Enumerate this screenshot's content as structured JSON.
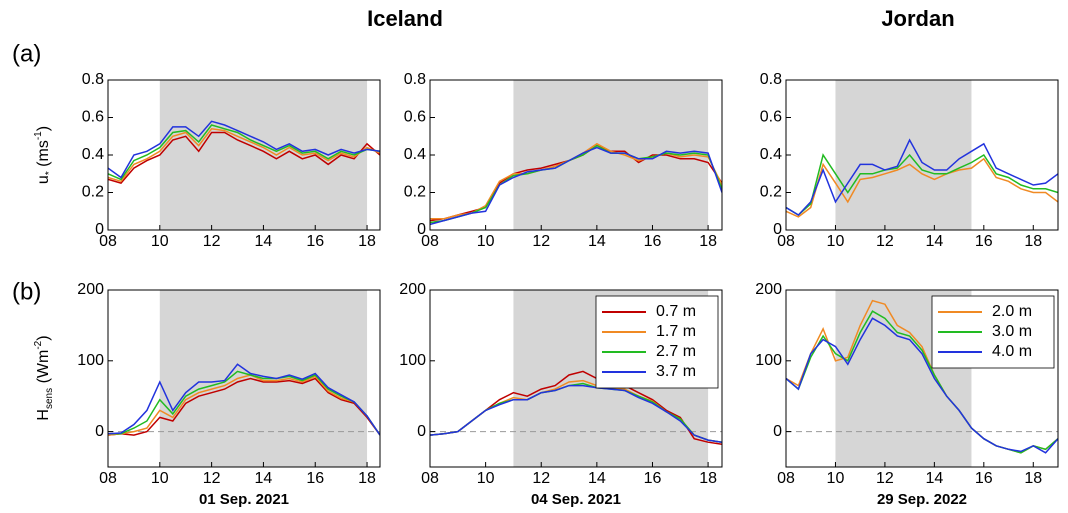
{
  "headers": [
    "Iceland",
    "Jordan"
  ],
  "row_labels": [
    "(a)",
    "(b)"
  ],
  "y_labels": [
    [
      "u",
      "*",
      " (ms",
      "-1",
      ")"
    ],
    [
      "H",
      "sens",
      " (Wm",
      "-2",
      ")"
    ]
  ],
  "chart_data": [
    {
      "type": "line",
      "x": [
        8,
        8.5,
        9,
        9.5,
        10,
        10.5,
        11,
        11.5,
        12,
        12.5,
        13,
        13.5,
        14,
        14.5,
        15,
        15.5,
        16,
        16.5,
        17,
        17.5,
        18,
        18.5
      ],
      "xlim": [
        8,
        18.5
      ],
      "xticks": [
        {
          "value": 8,
          "label": "08"
        },
        10,
        12,
        14,
        16,
        18
      ],
      "ylim": [
        0,
        0.8
      ],
      "yticks": [
        0,
        0.2,
        0.4,
        0.6,
        0.8
      ],
      "shade": [
        10,
        18
      ],
      "series": [
        {
          "color": "#c00000",
          "values": [
            0.27,
            0.25,
            0.33,
            0.37,
            0.4,
            0.48,
            0.5,
            0.42,
            0.52,
            0.52,
            0.48,
            0.45,
            0.42,
            0.38,
            0.42,
            0.38,
            0.4,
            0.35,
            0.4,
            0.38,
            0.46,
            0.4
          ]
        },
        {
          "color": "#f08a24",
          "values": [
            0.28,
            0.26,
            0.35,
            0.38,
            0.42,
            0.5,
            0.52,
            0.45,
            0.54,
            0.53,
            0.5,
            0.47,
            0.44,
            0.4,
            0.44,
            0.4,
            0.41,
            0.37,
            0.41,
            0.39,
            0.44,
            0.41
          ]
        },
        {
          "color": "#22bb22",
          "values": [
            0.3,
            0.27,
            0.37,
            0.4,
            0.44,
            0.52,
            0.53,
            0.47,
            0.56,
            0.54,
            0.52,
            0.48,
            0.45,
            0.42,
            0.45,
            0.41,
            0.42,
            0.38,
            0.42,
            0.4,
            0.43,
            0.42
          ]
        },
        {
          "color": "#2233dd",
          "values": [
            0.33,
            0.28,
            0.4,
            0.42,
            0.46,
            0.55,
            0.55,
            0.5,
            0.58,
            0.56,
            0.53,
            0.5,
            0.47,
            0.43,
            0.46,
            0.42,
            0.43,
            0.4,
            0.43,
            0.41,
            0.43,
            0.42
          ]
        }
      ]
    },
    {
      "type": "line",
      "x": [
        8,
        8.5,
        9,
        9.5,
        10,
        10.5,
        11,
        11.5,
        12,
        12.5,
        13,
        13.5,
        14,
        14.5,
        15,
        15.5,
        16,
        16.5,
        17,
        17.5,
        18,
        18.5
      ],
      "xlim": [
        8,
        18.5
      ],
      "xticks": [
        {
          "value": 8,
          "label": "08"
        },
        10,
        12,
        14,
        16,
        18
      ],
      "ylim": [
        0,
        0.8
      ],
      "yticks": [
        0,
        0.2,
        0.4,
        0.6,
        0.8
      ],
      "shade": [
        11,
        18
      ],
      "series": [
        {
          "color": "#c00000",
          "values": [
            0.05,
            0.06,
            0.08,
            0.1,
            0.12,
            0.25,
            0.3,
            0.32,
            0.33,
            0.35,
            0.37,
            0.4,
            0.45,
            0.42,
            0.42,
            0.36,
            0.4,
            0.4,
            0.38,
            0.38,
            0.36,
            0.25
          ]
        },
        {
          "color": "#f08a24",
          "values": [
            0.06,
            0.06,
            0.08,
            0.09,
            0.13,
            0.26,
            0.3,
            0.3,
            0.32,
            0.34,
            0.37,
            0.41,
            0.46,
            0.42,
            0.4,
            0.37,
            0.39,
            0.41,
            0.39,
            0.4,
            0.39,
            0.24
          ]
        },
        {
          "color": "#22bb22",
          "values": [
            0.04,
            0.05,
            0.07,
            0.09,
            0.12,
            0.24,
            0.29,
            0.3,
            0.32,
            0.33,
            0.37,
            0.4,
            0.45,
            0.41,
            0.41,
            0.38,
            0.39,
            0.41,
            0.4,
            0.41,
            0.4,
            0.22
          ]
        },
        {
          "color": "#2233dd",
          "values": [
            0.03,
            0.05,
            0.07,
            0.09,
            0.1,
            0.24,
            0.28,
            0.31,
            0.32,
            0.33,
            0.37,
            0.41,
            0.44,
            0.41,
            0.41,
            0.38,
            0.38,
            0.42,
            0.41,
            0.42,
            0.41,
            0.2
          ]
        }
      ]
    },
    {
      "type": "line",
      "x": [
        8,
        8.5,
        9,
        9.5,
        10,
        10.5,
        11,
        11.5,
        12,
        12.5,
        13,
        13.5,
        14,
        14.5,
        15,
        15.5,
        16,
        16.5,
        17,
        17.5,
        18,
        18.5,
        19
      ],
      "xlim": [
        8,
        19
      ],
      "xticks": [
        {
          "value": 8,
          "label": "08"
        },
        10,
        12,
        14,
        16,
        18
      ],
      "ylim": [
        0,
        0.8
      ],
      "yticks": [
        0,
        0.2,
        0.4,
        0.6,
        0.8
      ],
      "shade": [
        10,
        15.5
      ],
      "series": [
        {
          "color": "#f08a24",
          "values": [
            0.1,
            0.07,
            0.12,
            0.35,
            0.25,
            0.15,
            0.27,
            0.28,
            0.3,
            0.32,
            0.35,
            0.3,
            0.27,
            0.3,
            0.32,
            0.33,
            0.38,
            0.28,
            0.26,
            0.22,
            0.2,
            0.2,
            0.15
          ]
        },
        {
          "color": "#22bb22",
          "values": [
            0.12,
            0.08,
            0.14,
            0.4,
            0.3,
            0.2,
            0.3,
            0.3,
            0.32,
            0.33,
            0.4,
            0.32,
            0.3,
            0.3,
            0.33,
            0.36,
            0.4,
            0.3,
            0.28,
            0.24,
            0.22,
            0.22,
            0.2
          ]
        },
        {
          "color": "#2233dd",
          "values": [
            0.12,
            0.08,
            0.15,
            0.32,
            0.15,
            0.25,
            0.35,
            0.35,
            0.32,
            0.34,
            0.48,
            0.36,
            0.32,
            0.32,
            0.38,
            0.42,
            0.46,
            0.33,
            0.3,
            0.27,
            0.24,
            0.25,
            0.3
          ]
        }
      ]
    },
    {
      "type": "line",
      "xlabel": "01 Sep. 2021",
      "x": [
        8,
        8.5,
        9,
        9.5,
        10,
        10.5,
        11,
        11.5,
        12,
        12.5,
        13,
        13.5,
        14,
        14.5,
        15,
        15.5,
        16,
        16.5,
        17,
        17.5,
        18,
        18.5
      ],
      "xlim": [
        8,
        18.5
      ],
      "xticks": [
        {
          "value": 8,
          "label": "08"
        },
        10,
        12,
        14,
        16,
        18
      ],
      "ylim": [
        -50,
        200
      ],
      "yticks": [
        0,
        100,
        200
      ],
      "shade": [
        10,
        18
      ],
      "zero_line": true,
      "series": [
        {
          "color": "#c00000",
          "values": [
            -5,
            -3,
            -5,
            0,
            20,
            15,
            40,
            50,
            55,
            60,
            70,
            75,
            70,
            70,
            72,
            68,
            75,
            55,
            45,
            40,
            20,
            -5
          ]
        },
        {
          "color": "#f08a24",
          "values": [
            -5,
            -3,
            0,
            5,
            30,
            20,
            45,
            55,
            60,
            65,
            75,
            80,
            72,
            72,
            75,
            70,
            78,
            57,
            47,
            42,
            22,
            -5
          ]
        },
        {
          "color": "#22bb22",
          "values": [
            -3,
            -3,
            5,
            15,
            45,
            25,
            50,
            60,
            65,
            70,
            85,
            80,
            75,
            75,
            78,
            72,
            80,
            60,
            50,
            42,
            22,
            -5
          ]
        },
        {
          "color": "#2233dd",
          "values": [
            -3,
            -2,
            10,
            30,
            70,
            30,
            55,
            70,
            70,
            72,
            95,
            82,
            78,
            75,
            80,
            74,
            82,
            62,
            52,
            42,
            22,
            -5
          ]
        }
      ]
    },
    {
      "type": "line",
      "xlabel": "04 Sep. 2021",
      "x": [
        8,
        8.5,
        9,
        9.5,
        10,
        10.5,
        11,
        11.5,
        12,
        12.5,
        13,
        13.5,
        14,
        14.5,
        15,
        15.5,
        16,
        16.5,
        17,
        17.5,
        18,
        18.5
      ],
      "xlim": [
        8,
        18.5
      ],
      "xticks": [
        {
          "value": 8,
          "label": "08"
        },
        10,
        12,
        14,
        16,
        18
      ],
      "ylim": [
        -50,
        200
      ],
      "yticks": [
        0,
        100,
        200
      ],
      "shade": [
        11,
        18
      ],
      "zero_line": true,
      "legend": "upper right",
      "series": [
        {
          "name": "0.7 m",
          "color": "#c00000",
          "values": [
            -5,
            -3,
            0,
            15,
            30,
            45,
            55,
            50,
            60,
            65,
            80,
            85,
            75,
            70,
            65,
            55,
            45,
            30,
            20,
            -10,
            -15,
            -18
          ]
        },
        {
          "name": "1.7 m",
          "color": "#f08a24",
          "values": [
            -5,
            -3,
            0,
            15,
            30,
            40,
            48,
            45,
            55,
            60,
            70,
            72,
            65,
            62,
            60,
            50,
            43,
            28,
            18,
            -5,
            -12,
            -15
          ]
        },
        {
          "name": "2.7 m",
          "color": "#22bb22",
          "values": [
            -5,
            -3,
            0,
            15,
            30,
            40,
            45,
            45,
            55,
            58,
            65,
            68,
            62,
            60,
            58,
            50,
            42,
            28,
            18,
            -5,
            -12,
            -15
          ]
        },
        {
          "name": "3.7 m",
          "color": "#2233dd",
          "values": [
            -5,
            -3,
            0,
            15,
            30,
            38,
            45,
            45,
            55,
            58,
            65,
            65,
            62,
            60,
            58,
            48,
            40,
            28,
            15,
            -5,
            -12,
            -15
          ]
        }
      ]
    },
    {
      "type": "line",
      "xlabel": "29 Sep. 2022",
      "x": [
        8,
        8.5,
        9,
        9.5,
        10,
        10.5,
        11,
        11.5,
        12,
        12.5,
        13,
        13.5,
        14,
        14.5,
        15,
        15.5,
        16,
        16.5,
        17,
        17.5,
        18,
        18.5,
        19
      ],
      "xlim": [
        8,
        19
      ],
      "xticks": [
        {
          "value": 8,
          "label": "08"
        },
        10,
        12,
        14,
        16,
        18
      ],
      "ylim": [
        -50,
        200
      ],
      "yticks": [
        0,
        100,
        200
      ],
      "shade": [
        10,
        15.5
      ],
      "zero_line": true,
      "legend": "upper right",
      "series": [
        {
          "name": "2.0 m",
          "color": "#f08a24",
          "values": [
            75,
            65,
            110,
            145,
            100,
            105,
            150,
            185,
            180,
            150,
            140,
            120,
            80,
            50,
            30,
            5,
            -10,
            -20,
            -25,
            -30,
            -20,
            -25,
            -10
          ]
        },
        {
          "name": "3.0 m",
          "color": "#22bb22",
          "values": [
            75,
            60,
            105,
            135,
            110,
            100,
            140,
            170,
            160,
            140,
            135,
            115,
            80,
            50,
            30,
            5,
            -10,
            -20,
            -25,
            -30,
            -20,
            -25,
            -10
          ]
        },
        {
          "name": "4.0 m",
          "color": "#2233dd",
          "values": [
            75,
            60,
            110,
            130,
            120,
            95,
            130,
            160,
            150,
            135,
            130,
            110,
            75,
            50,
            30,
            5,
            -10,
            -20,
            -25,
            -28,
            -20,
            -30,
            -10
          ]
        }
      ]
    }
  ]
}
